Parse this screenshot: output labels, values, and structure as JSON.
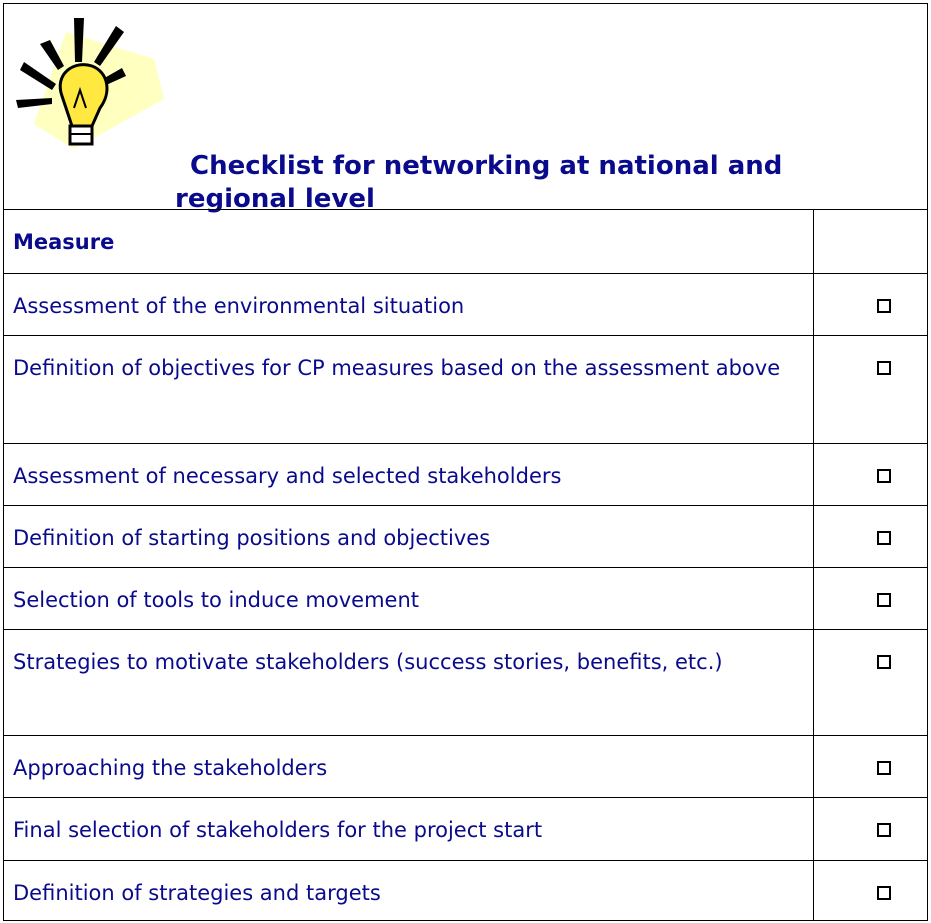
{
  "title": "Checklist for networking at national and regional level",
  "table": {
    "header": "Measure",
    "rows": [
      "Assessment of the environmental situation",
      "Definition of objectives for CP measures based on the assessment above",
      "Assessment of necessary and selected stakeholders",
      "Definition of starting positions and objectives",
      "Selection of tools to induce movement",
      "Strategies to motivate stakeholders (success stories, benefits, etc.)",
      "Approaching the stakeholders",
      "Final selection of stakeholders for the project start",
      "Definition of strategies and targets"
    ]
  }
}
